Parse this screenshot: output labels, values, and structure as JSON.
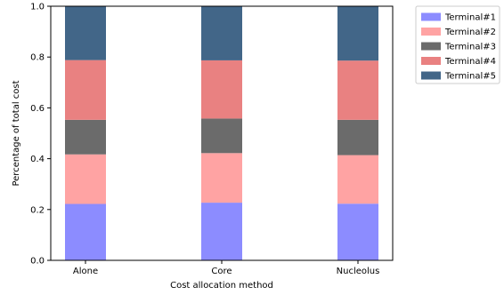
{
  "chart_data": {
    "type": "bar",
    "stacked": true,
    "categories": [
      "Alone",
      "Core",
      "Nucleolus"
    ],
    "xlabel": "Cost allocation method",
    "ylabel": "Percentage of total cost",
    "ylim": [
      0,
      1.0
    ],
    "yticks": [
      "0.0",
      "0.2",
      "0.4",
      "0.6",
      "0.8",
      "1.0"
    ],
    "grid": false,
    "legend_position": "outside-top-right",
    "series": [
      {
        "name": "Terminal#1",
        "color": "#8c8cff",
        "values": [
          0.222,
          0.227,
          0.223
        ]
      },
      {
        "name": "Terminal#2",
        "color": "#ffa3a3",
        "values": [
          0.195,
          0.195,
          0.191
        ]
      },
      {
        "name": "Terminal#3",
        "color": "#6b6b6b",
        "values": [
          0.136,
          0.136,
          0.139
        ]
      },
      {
        "name": "Terminal#4",
        "color": "#e98181",
        "values": [
          0.235,
          0.229,
          0.233
        ]
      },
      {
        "name": "Terminal#5",
        "color": "#426688",
        "values": [
          0.212,
          0.213,
          0.214
        ]
      }
    ]
  }
}
